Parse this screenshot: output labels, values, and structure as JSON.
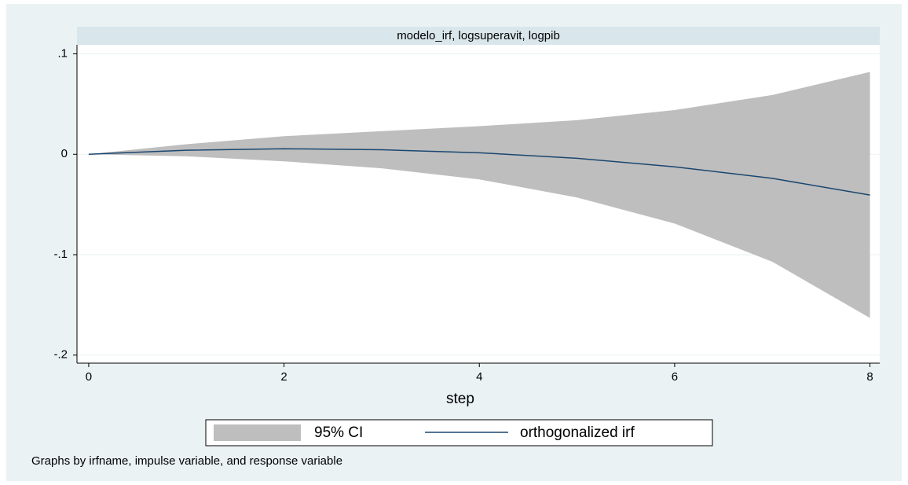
{
  "chart_data": {
    "type": "line",
    "panel_title": "modelo_irf, logsuperavit, logpib",
    "xlabel": "step",
    "note": "Graphs by irfname, impulse variable, and response variable",
    "x": [
      0,
      1,
      2,
      3,
      4,
      5,
      6,
      7,
      8
    ],
    "series": [
      {
        "name": "95% CI",
        "color": "#bebebe",
        "upper": [
          0,
          0.01,
          0.018,
          0.023,
          0.028,
          0.034,
          0.044,
          0.059,
          0.082
        ],
        "lower": [
          0,
          -0.002,
          -0.007,
          -0.014,
          -0.025,
          -0.043,
          -0.069,
          -0.107,
          -0.163
        ]
      },
      {
        "name": "orthogonalized irf",
        "color": "#1a476f",
        "values": [
          0,
          0.004,
          0.0055,
          0.0045,
          0.0015,
          -0.004,
          -0.0125,
          -0.024,
          -0.0406
        ]
      }
    ],
    "xlim": [
      -0.12,
      8.1
    ],
    "xticks": [
      0,
      2,
      4,
      6,
      8
    ],
    "ylim": [
      -0.208,
      0.109
    ],
    "yticks": [
      {
        "value": 0.1,
        "label": ".1"
      },
      0,
      {
        "value": -0.1,
        "label": "-.1"
      },
      {
        "value": -0.2,
        "label": "-.2"
      }
    ],
    "grid": true
  }
}
